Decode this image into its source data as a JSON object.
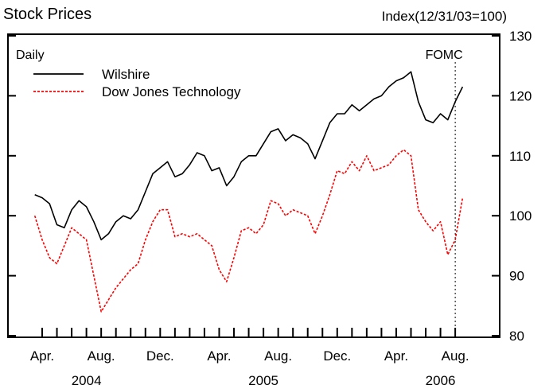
{
  "chart_data": {
    "type": "line",
    "title": "Stock Prices",
    "subtitle": "Index(12/31/03=100)",
    "frequency_label": "Daily",
    "categories": [
      null,
      "Apr.",
      null,
      null,
      null,
      null,
      null,
      null,
      null,
      "Aug.",
      null,
      null,
      null,
      null,
      null,
      null,
      null,
      "Dec.",
      null,
      null,
      null,
      null,
      null,
      null,
      null,
      "Apr.",
      null,
      null,
      null,
      null,
      null,
      null,
      null,
      "Aug.",
      null,
      null,
      null,
      null,
      null,
      null,
      null,
      "Dec.",
      null,
      null,
      null,
      null,
      null,
      null,
      null,
      "Apr.",
      null,
      null,
      null,
      null,
      null,
      null,
      null,
      "Aug.",
      null
    ],
    "years": [
      "2004",
      "2005",
      "2006"
    ],
    "series": [
      {
        "name": "Wilshire",
        "color": "#000000",
        "dashed": false,
        "values": [
          103.5,
          103,
          102,
          98.5,
          98,
          101,
          102.5,
          101.5,
          99,
          96,
          97,
          99,
          100,
          99.5,
          101,
          104,
          107,
          108,
          109,
          106.5,
          107,
          108.5,
          110.5,
          110,
          107.5,
          108,
          105,
          106.5,
          109,
          110,
          110,
          112,
          114,
          114.5,
          112.5,
          113.5,
          113,
          112,
          109.5,
          112.5,
          115.5,
          117,
          117,
          118.5,
          117.5,
          118.5,
          119.5,
          120,
          121.5,
          122.5,
          123,
          124,
          119,
          116,
          115.5,
          117,
          116,
          119,
          121.5
        ]
      },
      {
        "name": "Dow Jones Technology",
        "color": "#ff0000",
        "dashed": true,
        "values": [
          100,
          96,
          93,
          92,
          95,
          98,
          97,
          96,
          90,
          84,
          86,
          88,
          89.5,
          91,
          92,
          96,
          99,
          101,
          101,
          96.5,
          97,
          96.5,
          97,
          96,
          95,
          91,
          89,
          93,
          97.5,
          98,
          97,
          98.5,
          102.5,
          102,
          100,
          101,
          100.5,
          100,
          97,
          100,
          103.5,
          107.5,
          107,
          109,
          107.5,
          110,
          107.5,
          108,
          108.5,
          110,
          111,
          110,
          101,
          99,
          97.5,
          99,
          93.5,
          96,
          103
        ]
      }
    ],
    "fomc": {
      "label": "FOMC",
      "category_index": 57
    },
    "ylim": [
      80,
      130
    ],
    "yticks": [
      80,
      90,
      100,
      110,
      120,
      130
    ],
    "grid": false
  }
}
